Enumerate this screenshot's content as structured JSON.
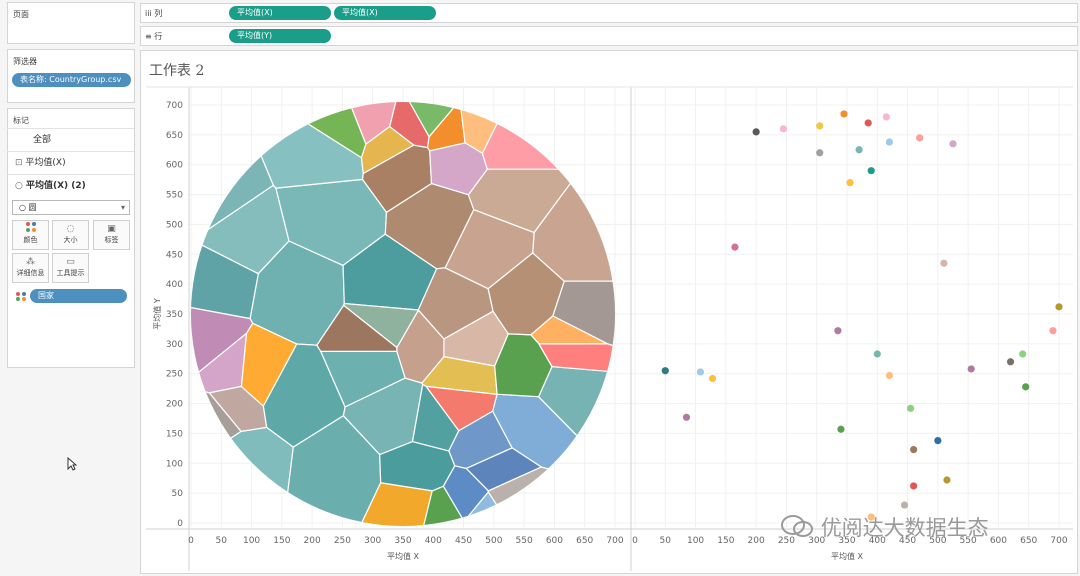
{
  "pages_panel": {
    "title": "页面"
  },
  "columns_shelf": {
    "icon": "iii",
    "label": "列",
    "pills": [
      "平均值(X)",
      "平均值(X)"
    ]
  },
  "rows_shelf": {
    "icon": "≡",
    "label": "行",
    "pills": [
      "平均值(Y)"
    ]
  },
  "filters_panel": {
    "title": "筛选器",
    "pill": "表名称: CountryGroup.csv"
  },
  "marks_panel": {
    "title": "标记",
    "all": "全部",
    "item1_icon": "⊡",
    "item1": "平均值(X)",
    "item2_icon": "○",
    "item2": "平均值(X) (2)",
    "dropdown_value": "○ 圆",
    "buttons": [
      "颜色",
      "大小",
      "标签",
      "详细信息",
      "工具提示"
    ],
    "color_pill": "国家"
  },
  "sheet": {
    "title": "工作表 2"
  },
  "watermark": "优阅达大数据生态",
  "colors": {
    "teal": "#1a9e8a",
    "pill_blue": "#4d8fbf"
  },
  "chart_data": [
    {
      "type": "scatter",
      "subtype": "voronoi_circle",
      "xlabel": "平均值 X",
      "ylabel": "平均值 Y",
      "xlim": [
        0,
        700
      ],
      "ylim": [
        0,
        700
      ],
      "x_ticks": [
        0,
        50,
        100,
        150,
        200,
        250,
        300,
        350,
        400,
        450,
        500,
        550,
        600,
        650,
        700
      ],
      "y_ticks": [
        0,
        50,
        100,
        150,
        200,
        250,
        300,
        350,
        400,
        450,
        500,
        550,
        600,
        650,
        700
      ],
      "grid": true,
      "cells": [
        {
          "x": 75,
          "y": 480,
          "c": "#85bcbc"
        },
        {
          "x": 175,
          "y": 385,
          "c": "#6fb0b0"
        },
        {
          "x": 235,
          "y": 520,
          "c": "#7ab8b8"
        },
        {
          "x": 225,
          "y": 620,
          "c": "#86c0c0"
        },
        {
          "x": 40,
          "y": 410,
          "c": "#5fa3a6"
        },
        {
          "x": 35,
          "y": 540,
          "c": "#7bb5b6"
        },
        {
          "x": 330,
          "y": 390,
          "c": "#4d9c9e"
        },
        {
          "x": 165,
          "y": 215,
          "c": "#5ea8a8"
        },
        {
          "x": 300,
          "y": 275,
          "c": "#6cb1b0"
        },
        {
          "x": 345,
          "y": 180,
          "c": "#78b4b3"
        },
        {
          "x": 85,
          "y": 105,
          "c": "#7fbcbb"
        },
        {
          "x": 245,
          "y": 85,
          "c": "#6aaeae"
        },
        {
          "x": 380,
          "y": 90,
          "c": "#4a9c9d"
        },
        {
          "x": 400,
          "y": 170,
          "c": "#52a0a0"
        },
        {
          "x": 410,
          "y": 510,
          "c": "#ad8a70"
        },
        {
          "x": 520,
          "y": 550,
          "c": "#caa995"
        },
        {
          "x": 565,
          "y": 375,
          "c": "#b59075"
        },
        {
          "x": 430,
          "y": 345,
          "c": "#b99680"
        },
        {
          "x": 455,
          "y": 300,
          "c": "#d9b7a6"
        },
        {
          "x": 640,
          "y": 460,
          "c": "#c9a591"
        },
        {
          "x": 490,
          "y": 470,
          "c": "#c8a38f"
        },
        {
          "x": 350,
          "y": 605,
          "c": "#a98064"
        },
        {
          "x": 480,
          "y": 130,
          "c": "#6f98c8"
        },
        {
          "x": 555,
          "y": 170,
          "c": "#7fadd8"
        },
        {
          "x": 500,
          "y": 85,
          "c": "#5d85bb"
        },
        {
          "x": 460,
          "y": 45,
          "c": "#5d8cc5"
        },
        {
          "x": 615,
          "y": 230,
          "c": "#78b3b3"
        },
        {
          "x": 620,
          "y": 310,
          "c": "#ffb060"
        },
        {
          "x": 20,
          "y": 300,
          "c": "#c08cb5"
        },
        {
          "x": 60,
          "y": 250,
          "c": "#d5a5c9"
        },
        {
          "x": 40,
          "y": 175,
          "c": "#a79e9a"
        },
        {
          "x": 70,
          "y": 200,
          "c": "#c0a8a0"
        },
        {
          "x": 110,
          "y": 245,
          "c": "#ffaa33"
        },
        {
          "x": 445,
          "y": 245,
          "c": "#e3be52"
        },
        {
          "x": 440,
          "y": 200,
          "c": "#f47a6e"
        },
        {
          "x": 560,
          "y": 255,
          "c": "#59a14f"
        },
        {
          "x": 395,
          "y": 685,
          "c": "#7ab967"
        },
        {
          "x": 360,
          "y": 665,
          "c": "#e76a6a"
        },
        {
          "x": 430,
          "y": 655,
          "c": "#f28e2b"
        },
        {
          "x": 470,
          "y": 660,
          "c": "#ffbe7d"
        },
        {
          "x": 300,
          "y": 680,
          "c": "#f1a0b0"
        },
        {
          "x": 250,
          "y": 660,
          "c": "#76b556"
        },
        {
          "x": 335,
          "y": 632,
          "c": "#e4b64d"
        },
        {
          "x": 440,
          "y": 610,
          "c": "#d4a6c8"
        },
        {
          "x": 520,
          "y": 635,
          "c": "#ff9da7"
        },
        {
          "x": 370,
          "y": 25,
          "c": "#f2a82a"
        },
        {
          "x": 410,
          "y": 15,
          "c": "#59a14f"
        },
        {
          "x": 490,
          "y": 20,
          "c": "#8fbbe0"
        },
        {
          "x": 520,
          "y": 40,
          "c": "#bab0ac"
        },
        {
          "x": 640,
          "y": 350,
          "c": "#a39893"
        },
        {
          "x": 620,
          "y": 290,
          "c": "#ff7f7f"
        },
        {
          "x": 300,
          "y": 300,
          "c": "#9d7660"
        },
        {
          "x": 380,
          "y": 300,
          "c": "#c5a08c"
        },
        {
          "x": 325,
          "y": 332,
          "c": "#8fb29e"
        }
      ],
      "points": [
        {
          "x": 200,
          "y": 655,
          "c": "#595959"
        },
        {
          "x": 245,
          "y": 660,
          "c": "#f7b6d2"
        },
        {
          "x": 305,
          "y": 665,
          "c": "#edc948"
        },
        {
          "x": 345,
          "y": 685,
          "c": "#f28e2b"
        },
        {
          "x": 385,
          "y": 670,
          "c": "#e15759"
        },
        {
          "x": 415,
          "y": 680,
          "c": "#f7b6d2"
        },
        {
          "x": 305,
          "y": 620,
          "c": "#a0a0a0"
        },
        {
          "x": 370,
          "y": 625,
          "c": "#76b7b2"
        },
        {
          "x": 420,
          "y": 638,
          "c": "#9ecae9"
        },
        {
          "x": 470,
          "y": 645,
          "c": "#ff9d9a"
        },
        {
          "x": 525,
          "y": 635,
          "c": "#d4a6c8"
        },
        {
          "x": 390,
          "y": 590,
          "c": "#1a9e8a"
        },
        {
          "x": 355,
          "y": 570,
          "c": "#ffbe3d"
        },
        {
          "x": 165,
          "y": 462,
          "c": "#d37295"
        },
        {
          "x": 510,
          "y": 435,
          "c": "#d7b5a6"
        },
        {
          "x": 700,
          "y": 362,
          "c": "#b6992d"
        },
        {
          "x": 335,
          "y": 322,
          "c": "#b07aa1"
        },
        {
          "x": 690,
          "y": 322,
          "c": "#ff9d9a"
        },
        {
          "x": 400,
          "y": 283,
          "c": "#76b7b2"
        },
        {
          "x": 640,
          "y": 283,
          "c": "#8cd17d"
        },
        {
          "x": 620,
          "y": 270,
          "c": "#79706e"
        },
        {
          "x": 555,
          "y": 258,
          "c": "#b07aa1"
        },
        {
          "x": 50,
          "y": 255,
          "c": "#2e7d7e"
        },
        {
          "x": 108,
          "y": 253,
          "c": "#a0cbe8"
        },
        {
          "x": 128,
          "y": 242,
          "c": "#ffbe3d"
        },
        {
          "x": 420,
          "y": 247,
          "c": "#ffbe7d"
        },
        {
          "x": 645,
          "y": 228,
          "c": "#59a14f"
        },
        {
          "x": 455,
          "y": 192,
          "c": "#8cd17d"
        },
        {
          "x": 85,
          "y": 177,
          "c": "#b07aa1"
        },
        {
          "x": 340,
          "y": 157,
          "c": "#59a14f"
        },
        {
          "x": 500,
          "y": 138,
          "c": "#2e6fa8"
        },
        {
          "x": 460,
          "y": 123,
          "c": "#9d7660"
        },
        {
          "x": 515,
          "y": 72,
          "c": "#b6992d"
        },
        {
          "x": 460,
          "y": 62,
          "c": "#e15759"
        },
        {
          "x": 445,
          "y": 30,
          "c": "#bab0ac"
        },
        {
          "x": 390,
          "y": 10,
          "c": "#ffbe7d"
        }
      ]
    }
  ]
}
